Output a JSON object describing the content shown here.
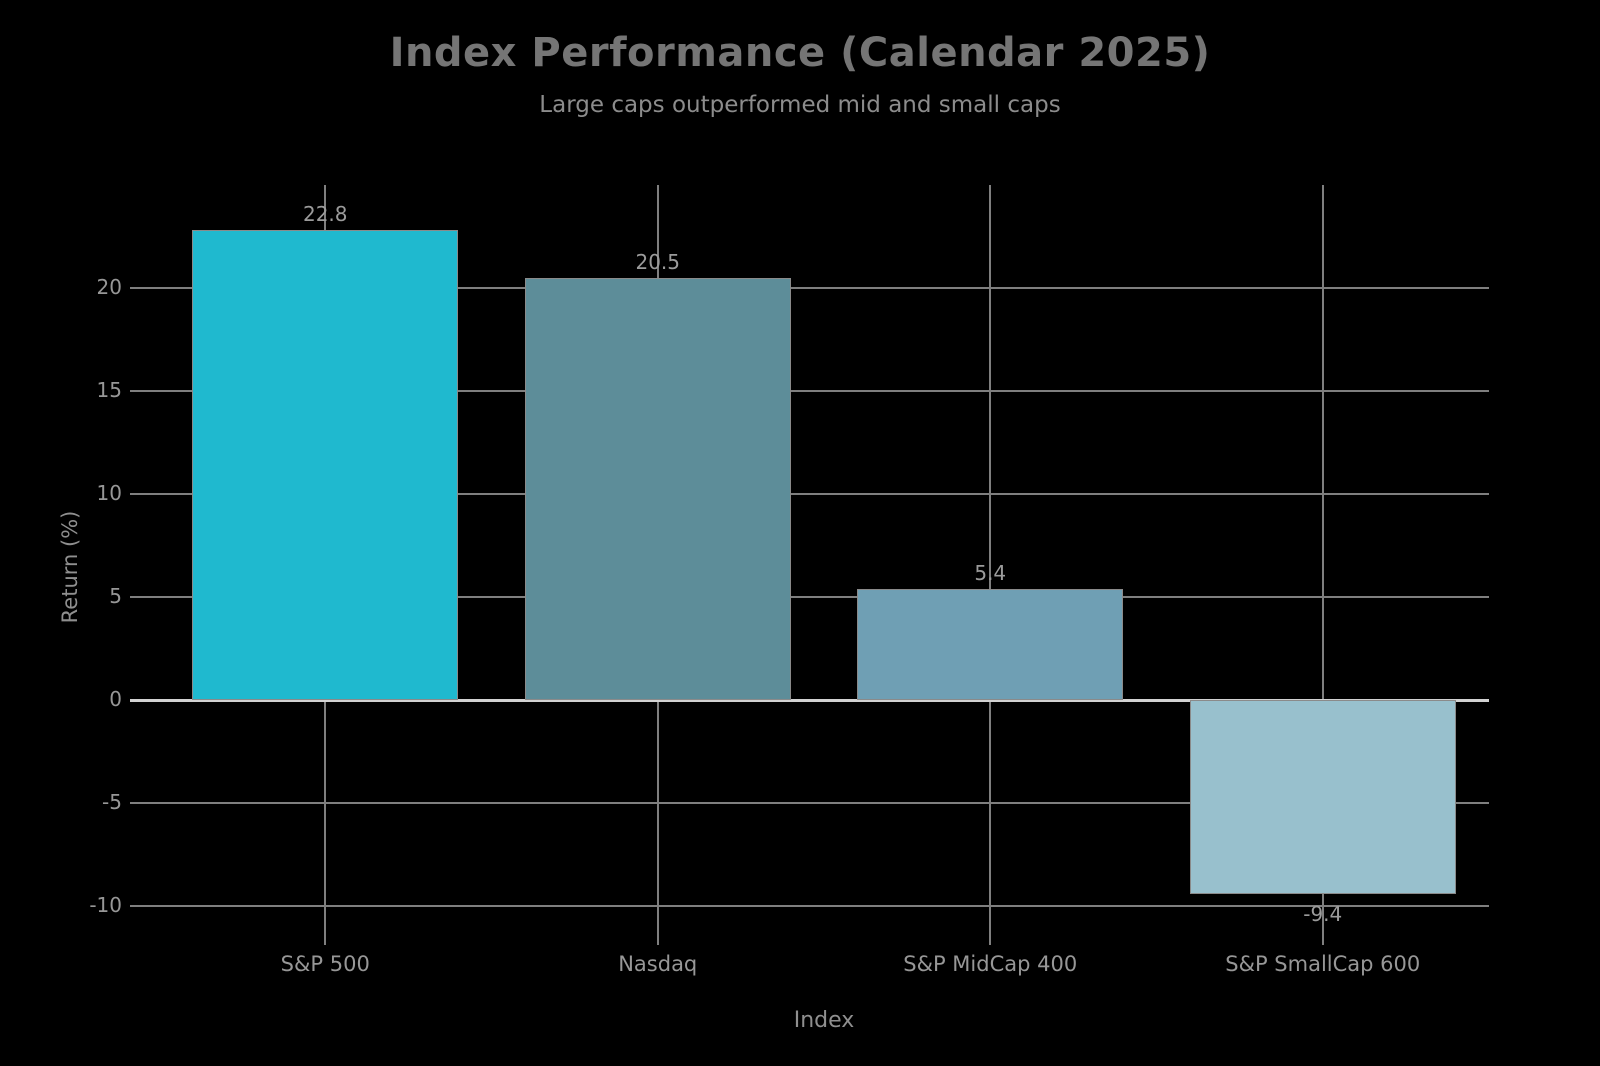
{
  "title": "Index Performance (Calendar 2025)",
  "subtitle": "Large caps outperformed mid and small caps",
  "chart_data": {
    "type": "bar",
    "title": "Index Performance (Calendar 2025)",
    "subtitle": "Large caps outperformed mid and small caps",
    "categories": [
      "S&P 500",
      "Nasdaq",
      "S&P MidCap 400",
      "S&P SmallCap 600"
    ],
    "values": [
      22.8,
      20.5,
      5.4,
      -9.4
    ],
    "value_labels": [
      "22.8",
      "20.5",
      "5.4",
      "-9.4"
    ],
    "bar_colors": [
      "#1fb9cf",
      "#5d8d99",
      "#6f9fb4",
      "#98c0cd"
    ],
    "xlabel": "Index",
    "ylabel": "Return (%)",
    "yticks": [
      20,
      15,
      10,
      5,
      0,
      -5,
      -10
    ],
    "ylim": [
      -10.3,
      25.0
    ],
    "grid": true,
    "legend": "none",
    "grid_color": "#7f7f7f",
    "zero_line_color": "#d2d2d2",
    "text_color": "#8f8f8f",
    "background": "#000000"
  }
}
